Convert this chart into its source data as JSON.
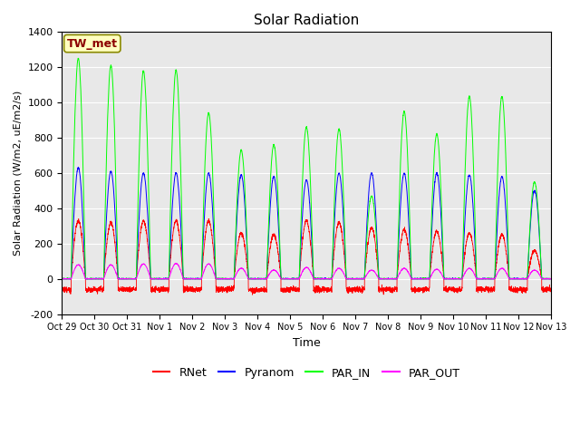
{
  "title": "Solar Radiation",
  "ylabel": "Solar Radiation (W/m2, uE/m2/s)",
  "xlabel": "Time",
  "ylim": [
    -200,
    1400
  ],
  "yticks": [
    -200,
    0,
    200,
    400,
    600,
    800,
    1000,
    1200,
    1400
  ],
  "xtick_labels": [
    "Oct 29",
    "Oct 30",
    "Oct 31",
    "Nov 1",
    "Nov 2",
    "Nov 3",
    "Nov 4",
    "Nov 5",
    "Nov 6",
    "Nov 7",
    "Nov 8",
    "Nov 9",
    "Nov 10",
    "Nov 11",
    "Nov 12",
    "Nov 13"
  ],
  "legend_labels": [
    "RNet",
    "Pyranom",
    "PAR_IN",
    "PAR_OUT"
  ],
  "legend_colors": [
    "red",
    "blue",
    "#00ff00",
    "magenta"
  ],
  "site_label": "TW_met",
  "site_label_color": "#8B0000",
  "site_label_bg": "#FFFFC0",
  "site_label_edge": "#8B8B00",
  "plot_bg_color": "#e8e8e8",
  "num_days": 15,
  "n_points": 4320,
  "colors": {
    "RNet": "red",
    "Pyranom": "blue",
    "PAR_IN": "#00ff00",
    "PAR_OUT": "magenta"
  },
  "par_in_peaks": [
    1250,
    1210,
    1180,
    1185,
    940,
    730,
    760,
    860,
    850,
    470,
    950,
    820,
    1035,
    1035,
    550
  ],
  "pyranom_peaks": [
    630,
    610,
    600,
    600,
    600,
    590,
    580,
    560,
    600,
    600,
    600,
    600,
    590,
    580,
    500
  ],
  "rnet_peaks": [
    330,
    320,
    330,
    330,
    330,
    260,
    250,
    330,
    320,
    290,
    280,
    270,
    260,
    250,
    160
  ],
  "par_out_peaks": [
    80,
    80,
    85,
    88,
    85,
    60,
    50,
    65,
    60,
    50,
    60,
    55,
    60,
    60,
    50
  ],
  "night_rnet": -60,
  "figsize": [
    6.4,
    4.8
  ],
  "dpi": 100
}
